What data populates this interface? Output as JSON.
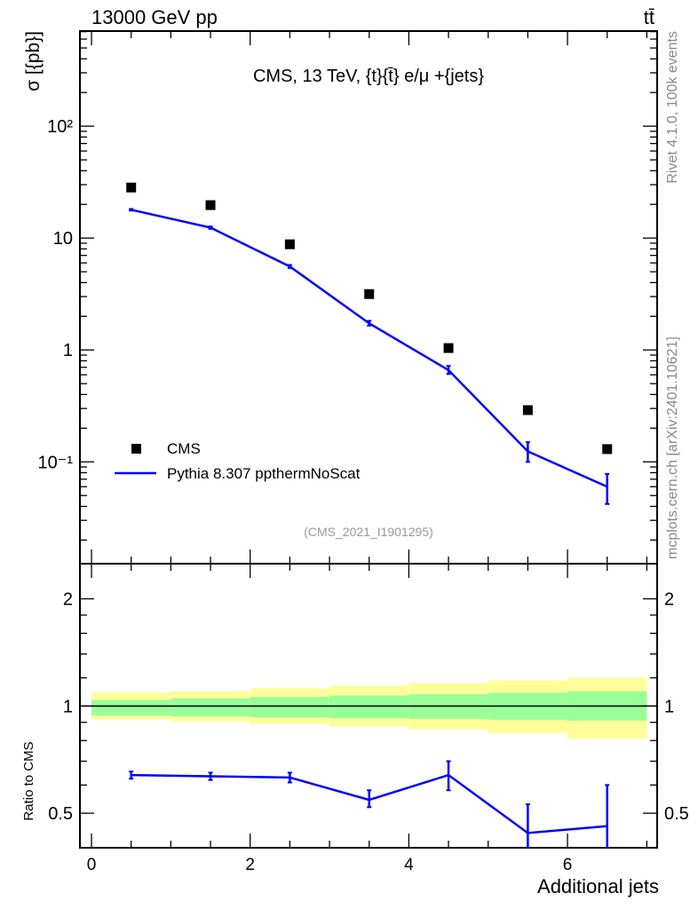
{
  "header": {
    "left": "13000 GeV pp",
    "right": "tt̄"
  },
  "side_text": {
    "top": "Rivet 4.1.0,  100k events",
    "bottom": "mcplots.cern.ch [arXiv:2401.10621]"
  },
  "chart_data": [
    {
      "type": "scatter",
      "title": "CMS, 13 TeV, {t}{t̄} e/μ +{jets}",
      "analysis_label": "(CMS_2021_I1901295)",
      "ylabel": "σ [{pb}]",
      "yscale": "log",
      "ylim": [
        0.0123,
        708
      ],
      "xlim": [
        -0.146,
        7.13
      ],
      "ytick_labels": [
        {
          "v": 100,
          "label": "10²"
        },
        {
          "v": 10,
          "label": "10"
        },
        {
          "v": 1,
          "label": "1"
        },
        {
          "v": 0.1,
          "label": "10⁻¹"
        }
      ],
      "legend_placement": "lower-left",
      "series": [
        {
          "name": "CMS",
          "color": "#000000",
          "marker": "square",
          "x": [
            0.5,
            1.5,
            2.5,
            3.5,
            4.5,
            5.5,
            6.5
          ],
          "y": [
            28.3,
            19.7,
            8.8,
            3.16,
            1.04,
            0.29,
            0.13
          ]
        },
        {
          "name": "Pythia 8.307 ppthermNoScat",
          "color": "#0000ff",
          "marker": "line",
          "x": [
            0.5,
            1.5,
            2.5,
            3.5,
            4.5,
            5.5,
            6.5
          ],
          "y": [
            17.9,
            12.4,
            5.57,
            1.73,
            0.66,
            0.124,
            0.06
          ],
          "yerr_low": [
            17.6,
            12.1,
            5.4,
            1.65,
            0.61,
            0.1,
            0.042
          ],
          "yerr_high": [
            18.2,
            12.7,
            5.75,
            1.82,
            0.72,
            0.15,
            0.078
          ]
        }
      ]
    },
    {
      "type": "line",
      "ylabel": "Ratio to CMS",
      "xlabel": "Additional jets",
      "yscale": "log",
      "ylim": [
        0.4,
        2.51
      ],
      "xlim": [
        -0.146,
        7.13
      ],
      "xtick_labels": [
        "0",
        "2",
        "4",
        "6"
      ],
      "ytick_labels": [
        {
          "v": 2,
          "label": "2"
        },
        {
          "v": 1,
          "label": "1"
        },
        {
          "v": 0.5,
          "label": "0.5"
        }
      ],
      "bands": {
        "bin_edges": [
          0,
          1,
          2,
          3,
          4,
          5,
          6,
          7
        ],
        "yellow_low": [
          0.917,
          0.905,
          0.89,
          0.875,
          0.86,
          0.84,
          0.81
        ],
        "yellow_high": [
          1.09,
          1.1,
          1.12,
          1.14,
          1.16,
          1.18,
          1.2
        ],
        "green_low": [
          0.94,
          0.935,
          0.93,
          0.925,
          0.92,
          0.915,
          0.91
        ],
        "green_high": [
          1.04,
          1.05,
          1.06,
          1.07,
          1.08,
          1.09,
          1.1
        ],
        "yellow_color": "#ffff99",
        "green_color": "#99ff99"
      },
      "series": [
        {
          "name": "Pythia 8.307 ppthermNoScat",
          "color": "#0000ff",
          "x": [
            0.5,
            1.5,
            2.5,
            3.5,
            4.5,
            5.5,
            6.5
          ],
          "y": [
            0.64,
            0.635,
            0.63,
            0.545,
            0.64,
            0.44,
            0.46
          ],
          "yerr_low": [
            0.625,
            0.62,
            0.61,
            0.52,
            0.58,
            0.35,
            0.35
          ],
          "yerr_high": [
            0.655,
            0.65,
            0.65,
            0.58,
            0.7,
            0.53,
            0.6
          ]
        }
      ]
    }
  ]
}
